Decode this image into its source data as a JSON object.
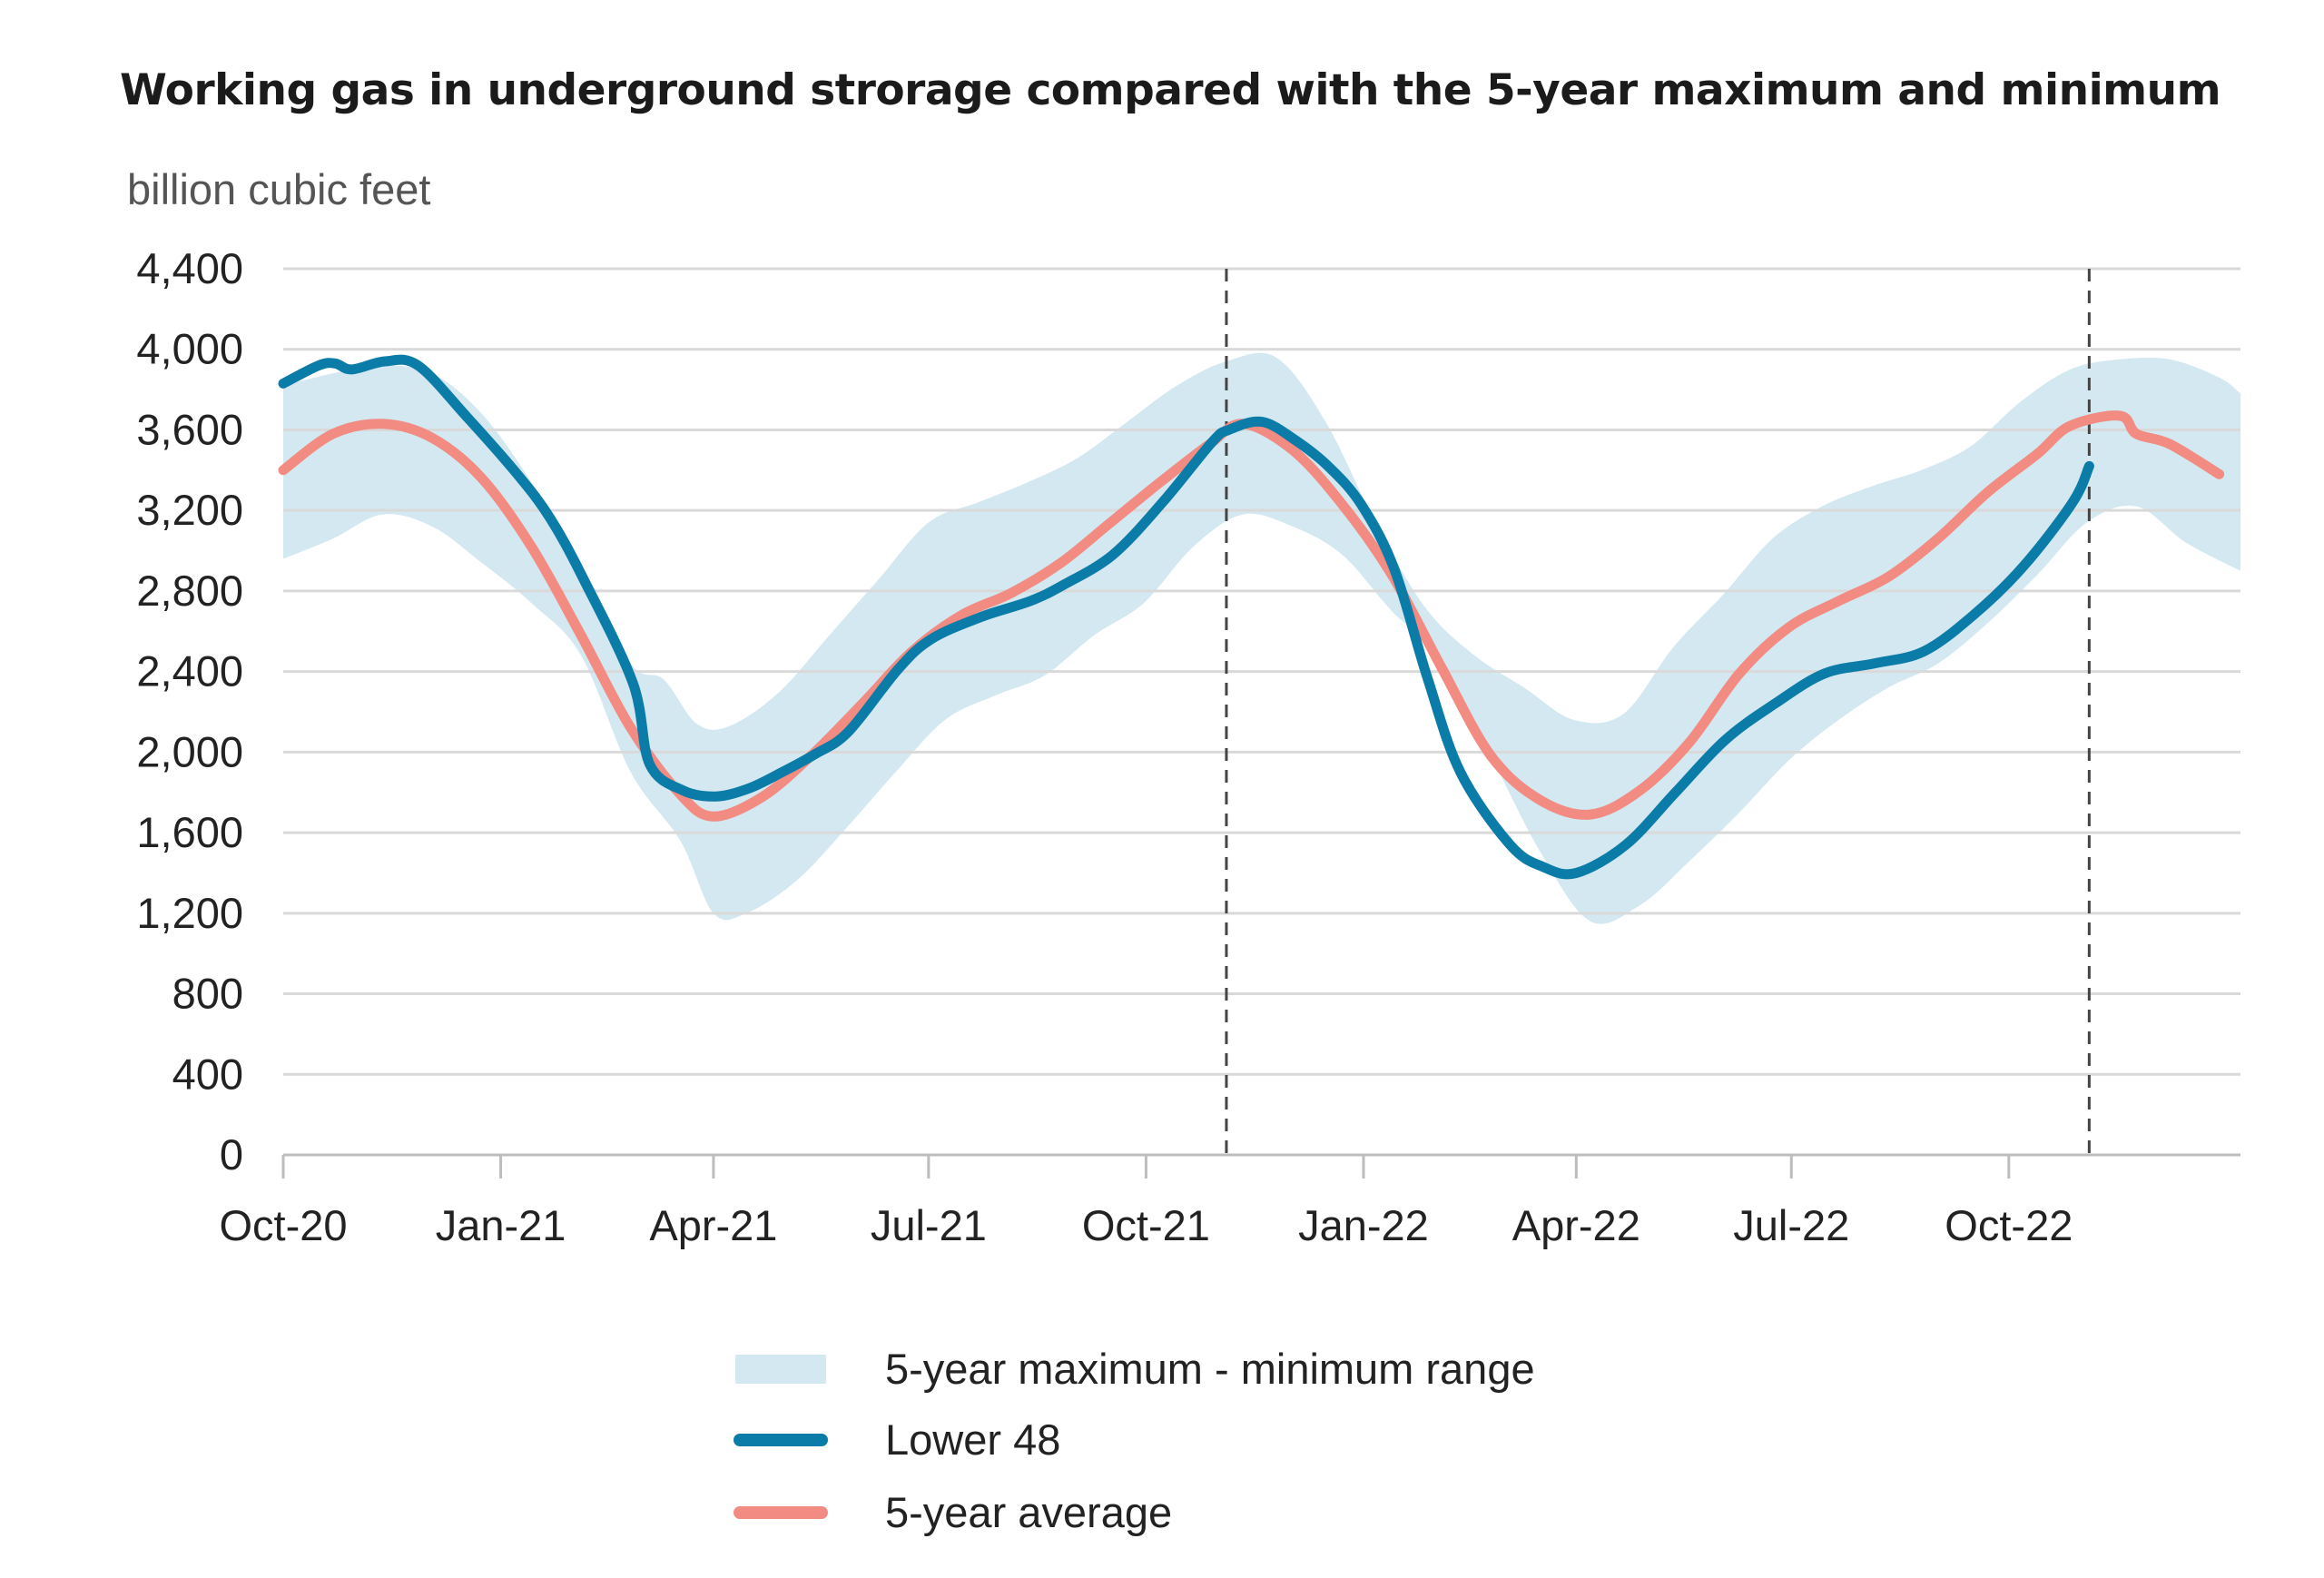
{
  "chart_data": {
    "type": "line",
    "title": "Working gas in underground strorage compared with the 5-year maximum and minimum",
    "ylabel": "billion cubic feet",
    "xlabel": "",
    "ylim": [
      0,
      4400
    ],
    "y_ticks": [
      0,
      400,
      800,
      1200,
      1600,
      2000,
      2400,
      2800,
      3200,
      3600,
      4000,
      4400
    ],
    "y_tick_labels": [
      "0",
      "400",
      "800",
      "1,200",
      "1,600",
      "2,000",
      "2,400",
      "2,800",
      "3,200",
      "3,600",
      "4,000",
      "4,400"
    ],
    "x_tick_labels": [
      "Oct-20",
      "Jan-21",
      "Apr-21",
      "Jul-21",
      "Oct-21",
      "Jan-22",
      "Apr-22",
      "Jul-22",
      "Oct-22"
    ],
    "x_tick_dates": [
      "2020-10-01",
      "2021-01-01",
      "2021-04-01",
      "2021-07-01",
      "2021-10-01",
      "2022-01-01",
      "2022-04-01",
      "2022-07-01",
      "2022-10-01"
    ],
    "xlim": [
      "2020-10-01",
      "2023-01-07"
    ],
    "grid": true,
    "vertical_markers": [
      "2021-11-04",
      "2022-11-04"
    ],
    "legend_position": "bottom",
    "colors": {
      "range": "#d3e8f0",
      "lower48": "#0b7ba8",
      "average": "#f28b82",
      "grid": "#d9d9d9",
      "marker": "#444444"
    },
    "series": [
      {
        "name": "5-year maximum - minimum range",
        "kind": "band",
        "upper": [
          [
            "2020-10-01",
            3820
          ],
          [
            "2020-10-22",
            3880
          ],
          [
            "2020-11-12",
            3920
          ],
          [
            "2020-12-03",
            3880
          ],
          [
            "2020-12-24",
            3680
          ],
          [
            "2021-01-14",
            3340
          ],
          [
            "2021-02-04",
            2920
          ],
          [
            "2021-02-25",
            2440
          ],
          [
            "2021-03-11",
            2360
          ],
          [
            "2021-03-25",
            2140
          ],
          [
            "2021-04-08",
            2130
          ],
          [
            "2021-04-29",
            2300
          ],
          [
            "2021-05-20",
            2580
          ],
          [
            "2021-06-10",
            2860
          ],
          [
            "2021-07-01",
            3140
          ],
          [
            "2021-07-22",
            3240
          ],
          [
            "2021-08-12",
            3340
          ],
          [
            "2021-09-02",
            3460
          ],
          [
            "2021-09-23",
            3640
          ],
          [
            "2021-10-14",
            3820
          ],
          [
            "2021-11-04",
            3940
          ],
          [
            "2021-11-25",
            3960
          ],
          [
            "2021-12-16",
            3640
          ],
          [
            "2022-01-06",
            3140
          ],
          [
            "2022-01-27",
            2720
          ],
          [
            "2022-02-17",
            2480
          ],
          [
            "2022-03-10",
            2320
          ],
          [
            "2022-03-31",
            2160
          ],
          [
            "2022-04-21",
            2190
          ],
          [
            "2022-05-12",
            2520
          ],
          [
            "2022-06-02",
            2780
          ],
          [
            "2022-06-23",
            3060
          ],
          [
            "2022-07-14",
            3220
          ],
          [
            "2022-08-04",
            3320
          ],
          [
            "2022-08-25",
            3400
          ],
          [
            "2022-09-15",
            3520
          ],
          [
            "2022-10-06",
            3740
          ],
          [
            "2022-10-27",
            3900
          ],
          [
            "2022-11-17",
            3950
          ],
          [
            "2022-12-08",
            3950
          ],
          [
            "2022-12-29",
            3860
          ],
          [
            "2023-01-07",
            3780
          ]
        ],
        "lower": [
          [
            "2020-10-01",
            2960
          ],
          [
            "2020-10-22",
            3060
          ],
          [
            "2020-11-12",
            3180
          ],
          [
            "2020-12-03",
            3120
          ],
          [
            "2020-12-24",
            2940
          ],
          [
            "2021-01-14",
            2740
          ],
          [
            "2021-02-04",
            2480
          ],
          [
            "2021-02-25",
            1900
          ],
          [
            "2021-03-18",
            1560
          ],
          [
            "2021-04-01",
            1200
          ],
          [
            "2021-04-15",
            1200
          ],
          [
            "2021-05-06",
            1360
          ],
          [
            "2021-05-27",
            1620
          ],
          [
            "2021-06-17",
            1900
          ],
          [
            "2021-07-08",
            2160
          ],
          [
            "2021-07-29",
            2280
          ],
          [
            "2021-08-19",
            2380
          ],
          [
            "2021-09-09",
            2580
          ],
          [
            "2021-09-30",
            2740
          ],
          [
            "2021-10-21",
            3020
          ],
          [
            "2021-11-11",
            3180
          ],
          [
            "2021-12-02",
            3120
          ],
          [
            "2021-12-23",
            2980
          ],
          [
            "2022-01-13",
            2700
          ],
          [
            "2022-02-03",
            2460
          ],
          [
            "2022-02-24",
            1980
          ],
          [
            "2022-03-17",
            1500
          ],
          [
            "2022-04-07",
            1160
          ],
          [
            "2022-04-28",
            1240
          ],
          [
            "2022-05-19",
            1460
          ],
          [
            "2022-06-09",
            1700
          ],
          [
            "2022-06-30",
            1960
          ],
          [
            "2022-07-21",
            2160
          ],
          [
            "2022-08-11",
            2320
          ],
          [
            "2022-09-01",
            2440
          ],
          [
            "2022-09-22",
            2640
          ],
          [
            "2022-10-13",
            2880
          ],
          [
            "2022-11-03",
            3140
          ],
          [
            "2022-11-24",
            3220
          ],
          [
            "2022-12-15",
            3040
          ],
          [
            "2023-01-07",
            2900
          ]
        ]
      },
      {
        "name": "Lower 48",
        "kind": "line",
        "points": [
          [
            "2020-10-01",
            3830
          ],
          [
            "2020-10-16",
            3920
          ],
          [
            "2020-10-23",
            3930
          ],
          [
            "2020-10-30",
            3900
          ],
          [
            "2020-11-13",
            3940
          ],
          [
            "2020-11-27",
            3920
          ],
          [
            "2020-12-18",
            3660
          ],
          [
            "2021-01-08",
            3380
          ],
          [
            "2021-01-22",
            3160
          ],
          [
            "2021-02-05",
            2860
          ],
          [
            "2021-02-26",
            2340
          ],
          [
            "2021-03-05",
            1940
          ],
          [
            "2021-03-19",
            1810
          ],
          [
            "2021-04-02",
            1780
          ],
          [
            "2021-04-16",
            1820
          ],
          [
            "2021-04-30",
            1900
          ],
          [
            "2021-05-14",
            1990
          ],
          [
            "2021-05-28",
            2100
          ],
          [
            "2021-06-18",
            2410
          ],
          [
            "2021-07-02",
            2560
          ],
          [
            "2021-07-23",
            2670
          ],
          [
            "2021-08-13",
            2750
          ],
          [
            "2021-08-27",
            2830
          ],
          [
            "2021-09-17",
            2980
          ],
          [
            "2021-10-08",
            3240
          ],
          [
            "2021-10-29",
            3540
          ],
          [
            "2021-11-05",
            3600
          ],
          [
            "2021-11-19",
            3640
          ],
          [
            "2021-12-03",
            3550
          ],
          [
            "2021-12-17",
            3420
          ],
          [
            "2021-12-31",
            3230
          ],
          [
            "2022-01-14",
            2910
          ],
          [
            "2022-01-28",
            2370
          ],
          [
            "2022-02-11",
            1900
          ],
          [
            "2022-03-04",
            1540
          ],
          [
            "2022-03-18",
            1430
          ],
          [
            "2022-04-01",
            1400
          ],
          [
            "2022-04-22",
            1540
          ],
          [
            "2022-05-13",
            1800
          ],
          [
            "2022-06-03",
            2060
          ],
          [
            "2022-06-24",
            2240
          ],
          [
            "2022-07-15",
            2390
          ],
          [
            "2022-08-05",
            2440
          ],
          [
            "2022-08-26",
            2500
          ],
          [
            "2022-09-16",
            2680
          ],
          [
            "2022-10-07",
            2920
          ],
          [
            "2022-10-28",
            3240
          ],
          [
            "2022-11-04",
            3420
          ]
        ]
      },
      {
        "name": "5-year average",
        "kind": "line",
        "points": [
          [
            "2020-10-01",
            3400
          ],
          [
            "2020-10-22",
            3580
          ],
          [
            "2020-11-12",
            3630
          ],
          [
            "2020-12-03",
            3560
          ],
          [
            "2020-12-24",
            3360
          ],
          [
            "2021-01-14",
            3020
          ],
          [
            "2021-02-04",
            2580
          ],
          [
            "2021-02-25",
            2120
          ],
          [
            "2021-03-18",
            1790
          ],
          [
            "2021-04-01",
            1680
          ],
          [
            "2021-04-22",
            1780
          ],
          [
            "2021-05-13",
            1990
          ],
          [
            "2021-06-03",
            2240
          ],
          [
            "2021-06-24",
            2500
          ],
          [
            "2021-07-15",
            2680
          ],
          [
            "2021-08-05",
            2790
          ],
          [
            "2021-08-26",
            2940
          ],
          [
            "2021-09-16",
            3140
          ],
          [
            "2021-10-07",
            3340
          ],
          [
            "2021-10-28",
            3530
          ],
          [
            "2021-11-11",
            3630
          ],
          [
            "2021-12-02",
            3500
          ],
          [
            "2021-12-23",
            3230
          ],
          [
            "2022-01-13",
            2880
          ],
          [
            "2022-02-03",
            2420
          ],
          [
            "2022-02-24",
            1980
          ],
          [
            "2022-03-17",
            1760
          ],
          [
            "2022-04-07",
            1690
          ],
          [
            "2022-04-28",
            1810
          ],
          [
            "2022-05-19",
            2050
          ],
          [
            "2022-06-09",
            2390
          ],
          [
            "2022-06-30",
            2620
          ],
          [
            "2022-07-21",
            2750
          ],
          [
            "2022-08-11",
            2870
          ],
          [
            "2022-09-01",
            3060
          ],
          [
            "2022-09-22",
            3290
          ],
          [
            "2022-10-13",
            3480
          ],
          [
            "2022-10-27",
            3620
          ],
          [
            "2022-11-17",
            3670
          ],
          [
            "2022-11-24",
            3580
          ],
          [
            "2022-12-08",
            3530
          ],
          [
            "2022-12-29",
            3380
          ]
        ]
      }
    ]
  }
}
